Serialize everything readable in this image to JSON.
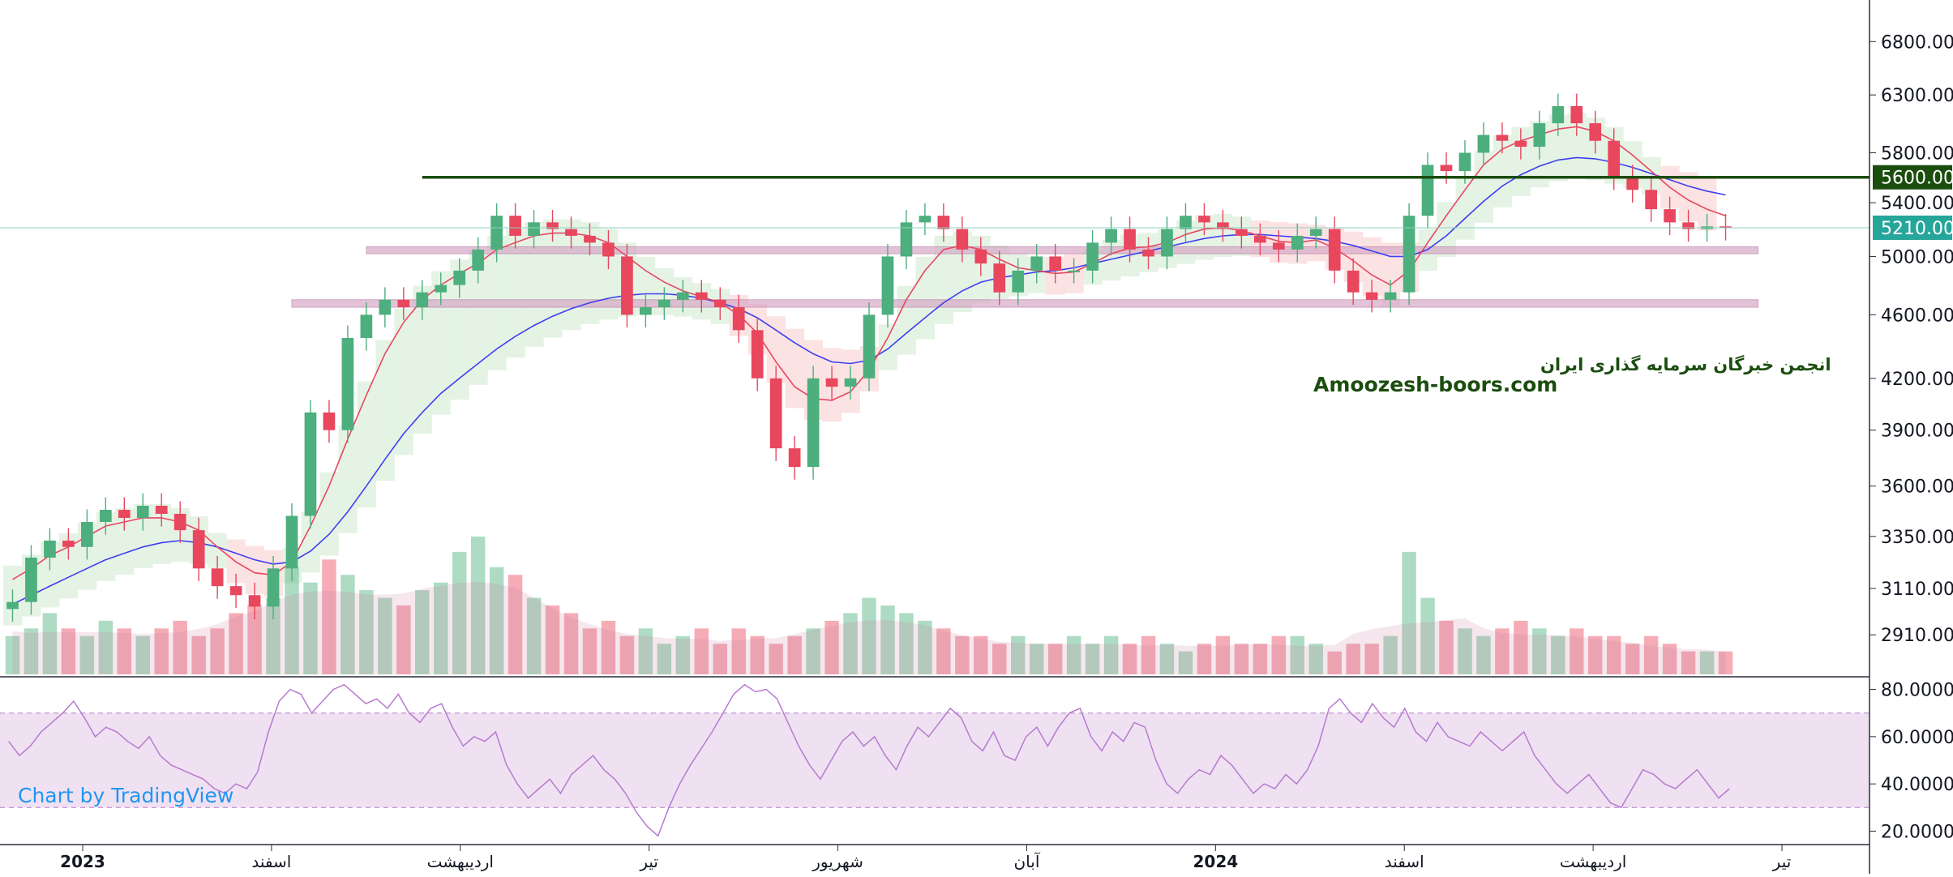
{
  "watermark": {
    "title_fa": "انجمن خبرگان سرمایه گذاری ایران",
    "site": "Amoozesh-boors.com",
    "attribution": "Chart by TradingView"
  },
  "colors": {
    "up": "#4caf7d",
    "down": "#e8475e",
    "sma_fast": "#e8475e",
    "sma_slow": "#3c3ff0",
    "cloud_bull": "#dcefdc",
    "cloud_bear": "#fbdada",
    "zone_fill": "#d8a9c8",
    "resistance": "#1b4d0f",
    "price_line": "#8fd2c0",
    "rsi_line": "#b77ad1",
    "rsi_band": "#efe1f1"
  },
  "chart_data": [
    {
      "type": "candlestick",
      "title": "",
      "y_axis_ticks": [
        "6800.00",
        "6300.00",
        "5800.00",
        "5400.00",
        "5000.00",
        "4600.00",
        "4200.00",
        "3900.00",
        "3600.00",
        "3350.00",
        "3110.00",
        "2910.00"
      ],
      "y_axis_scale": "log",
      "ylim": [
        2750,
        7150
      ],
      "x_axis_labels": [
        "2023",
        "اسفند",
        "اردیبهشت",
        "تیر",
        "شهریور",
        "آبان",
        "2024",
        "اسفند",
        "اردیبهشت",
        "تیر"
      ],
      "price_labels": {
        "resistance": {
          "value": 5600,
          "text": "5600.00"
        },
        "last_price": {
          "value": 5210,
          "text": "5210.00"
        }
      },
      "support_zones": [
        {
          "low": 5020,
          "high": 5070
        },
        {
          "low": 4650,
          "high": 4700
        }
      ],
      "series": [
        {
          "kind": "close",
          "values": [
            3050,
            3250,
            3330,
            3300,
            3420,
            3480,
            3440,
            3500,
            3460,
            3380,
            3200,
            3120,
            3080,
            3030,
            3200,
            3450,
            4000,
            3900,
            4450,
            4600,
            4700,
            4650,
            4750,
            4800,
            4900,
            5050,
            5300,
            5150,
            5250,
            5200,
            5150,
            5100,
            5000,
            4600,
            4650,
            4700,
            4750,
            4700,
            4650,
            4500,
            4200,
            3800,
            3700,
            4200,
            4150,
            4200,
            4600,
            5000,
            5250,
            5300,
            5200,
            5050,
            4950,
            4750,
            4900,
            5000,
            4900,
            4900,
            5100,
            5200,
            5050,
            5000,
            5200,
            5300,
            5250,
            5200,
            5150,
            5100,
            5050,
            5150,
            5200,
            4900,
            4750,
            4700,
            4750,
            5300,
            5700,
            5650,
            5800,
            5950,
            5900,
            5850,
            6050,
            6200,
            6050,
            5900,
            5600,
            5500,
            5350,
            5250,
            5200,
            5220,
            5210
          ]
        },
        {
          "kind": "volume",
          "values": [
            0.5,
            0.6,
            0.8,
            0.6,
            0.5,
            0.7,
            0.6,
            0.5,
            0.6,
            0.7,
            0.5,
            0.6,
            0.8,
            0.9,
            1.0,
            1.4,
            1.2,
            1.5,
            1.3,
            1.1,
            1.0,
            0.9,
            1.1,
            1.2,
            1.6,
            1.8,
            1.4,
            1.3,
            1.0,
            0.9,
            0.8,
            0.6,
            0.7,
            0.5,
            0.6,
            0.4,
            0.5,
            0.6,
            0.4,
            0.6,
            0.5,
            0.4,
            0.5,
            0.6,
            0.7,
            0.8,
            1.0,
            0.9,
            0.8,
            0.7,
            0.6,
            0.5,
            0.5,
            0.4,
            0.5,
            0.4,
            0.4,
            0.5,
            0.4,
            0.5,
            0.4,
            0.5,
            0.4,
            0.3,
            0.4,
            0.5,
            0.4,
            0.4,
            0.5,
            0.5,
            0.4,
            0.3,
            0.4,
            0.4,
            0.5,
            1.6,
            1.0,
            0.7,
            0.6,
            0.5,
            0.6,
            0.7,
            0.6,
            0.5,
            0.6,
            0.5,
            0.5,
            0.4,
            0.5,
            0.4,
            0.3,
            0.3,
            0.3
          ]
        },
        {
          "kind": "sma_fast",
          "values": [
            3150,
            3200,
            3260,
            3300,
            3350,
            3400,
            3420,
            3440,
            3440,
            3420,
            3380,
            3300,
            3230,
            3180,
            3170,
            3230,
            3400,
            3600,
            3850,
            4100,
            4350,
            4550,
            4700,
            4800,
            4880,
            4950,
            5050,
            5100,
            5150,
            5170,
            5170,
            5150,
            5100,
            5000,
            4900,
            4820,
            4760,
            4720,
            4680,
            4600,
            4480,
            4300,
            4150,
            4080,
            4070,
            4120,
            4250,
            4450,
            4700,
            4900,
            5050,
            5080,
            5050,
            4980,
            4920,
            4900,
            4880,
            4890,
            4950,
            5020,
            5060,
            5070,
            5100,
            5160,
            5200,
            5210,
            5190,
            5150,
            5110,
            5100,
            5120,
            5060,
            4970,
            4870,
            4800,
            4900,
            5100,
            5300,
            5500,
            5700,
            5830,
            5900,
            5950,
            6000,
            6020,
            5980,
            5900,
            5780,
            5650,
            5520,
            5420,
            5350,
            5300
          ]
        },
        {
          "kind": "sma_slow",
          "values": [
            3040,
            3080,
            3120,
            3160,
            3200,
            3240,
            3270,
            3300,
            3320,
            3330,
            3320,
            3300,
            3270,
            3240,
            3220,
            3230,
            3280,
            3360,
            3470,
            3600,
            3740,
            3880,
            4000,
            4110,
            4200,
            4290,
            4380,
            4460,
            4530,
            4590,
            4640,
            4680,
            4710,
            4730,
            4740,
            4740,
            4730,
            4710,
            4680,
            4640,
            4580,
            4500,
            4420,
            4350,
            4300,
            4290,
            4310,
            4380,
            4480,
            4580,
            4680,
            4760,
            4820,
            4850,
            4870,
            4890,
            4900,
            4920,
            4950,
            4980,
            5010,
            5040,
            5070,
            5100,
            5130,
            5150,
            5160,
            5160,
            5150,
            5140,
            5130,
            5110,
            5080,
            5040,
            5000,
            5000,
            5050,
            5150,
            5280,
            5410,
            5530,
            5620,
            5690,
            5740,
            5760,
            5750,
            5720,
            5680,
            5630,
            5580,
            5530,
            5490,
            5460
          ]
        }
      ]
    },
    {
      "type": "line",
      "title": "",
      "y_axis_ticks": [
        "80.0000",
        "60.0000",
        "40.0000",
        "20.0000"
      ],
      "ylim": [
        15,
        85
      ],
      "band": [
        30,
        70
      ],
      "series": [
        {
          "kind": "rsi",
          "values": [
            58,
            52,
            56,
            62,
            66,
            70,
            75,
            68,
            60,
            64,
            62,
            58,
            55,
            60,
            52,
            48,
            46,
            44,
            42,
            38,
            36,
            40,
            38,
            45,
            62,
            75,
            80,
            78,
            70,
            75,
            80,
            82,
            78,
            74,
            76,
            72,
            78,
            70,
            66,
            72,
            74,
            64,
            56,
            60,
            58,
            62,
            48,
            40,
            34,
            38,
            42,
            36,
            44,
            48,
            52,
            46,
            42,
            36,
            28,
            22,
            18,
            30,
            40,
            48,
            55,
            62,
            70,
            78,
            82,
            79,
            80,
            76,
            66,
            56,
            48,
            42,
            50,
            58,
            62,
            56,
            60,
            52,
            46,
            56,
            64,
            60,
            66,
            72,
            68,
            58,
            54,
            62,
            52,
            50,
            60,
            64,
            56,
            64,
            70,
            72,
            60,
            54,
            62,
            58,
            66,
            64,
            50,
            40,
            36,
            42,
            46,
            44,
            52,
            48,
            42,
            36,
            40,
            38,
            44,
            40,
            46,
            56,
            72,
            76,
            70,
            66,
            74,
            68,
            64,
            72,
            62,
            58,
            66,
            60,
            58,
            56,
            62,
            58,
            54,
            58,
            62,
            52,
            46,
            40,
            36,
            40,
            44,
            38,
            32,
            30,
            38,
            46,
            44,
            40,
            38,
            42,
            46,
            40,
            34,
            38
          ]
        }
      ]
    }
  ]
}
